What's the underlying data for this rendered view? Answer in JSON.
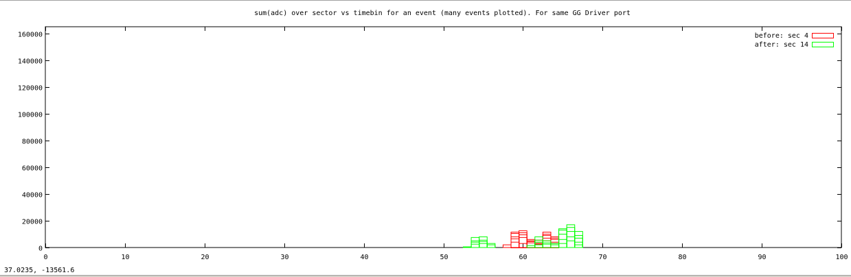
{
  "status": {
    "coords": "37.0235, -13561.6"
  },
  "chart_data": {
    "type": "bar",
    "title": "sum(adc) over sector vs timebin for an event (many events plotted).  For same GG Driver port",
    "xlabel": "",
    "ylabel": "",
    "xlim": [
      0,
      100
    ],
    "ylim": [
      0,
      165000
    ],
    "x_ticks": [
      0,
      10,
      20,
      30,
      40,
      50,
      60,
      70,
      80,
      90,
      100
    ],
    "y_ticks": [
      0,
      20000,
      40000,
      60000,
      80000,
      100000,
      120000,
      140000,
      160000
    ],
    "bin_width": 1,
    "grid": false,
    "legend_position": "top-right",
    "series": [
      {
        "name": "before: sec 4",
        "color": "#ff0000",
        "events": [
          [
            {
              "x": 59,
              "y": 0
            },
            {
              "x": 60,
              "y": 0
            },
            {
              "x": 61,
              "y": 0
            },
            {
              "x": 62,
              "y": 0
            },
            {
              "x": 63,
              "y": 0
            },
            {
              "x": 64,
              "y": 0
            }
          ],
          [
            {
              "x": 58,
              "y": 2000
            },
            {
              "x": 59,
              "y": 4000
            },
            {
              "x": 60,
              "y": 3000
            },
            {
              "x": 61,
              "y": 5000
            },
            {
              "x": 62,
              "y": 5500
            },
            {
              "x": 63,
              "y": 7000
            },
            {
              "x": 64,
              "y": 6000
            }
          ],
          [
            {
              "x": 59,
              "y": 8000
            },
            {
              "x": 60,
              "y": 9500
            },
            {
              "x": 61,
              "y": 6000
            },
            {
              "x": 62,
              "y": 4000
            },
            {
              "x": 63,
              "y": 10000
            },
            {
              "x": 64,
              "y": 8000
            }
          ],
          [
            {
              "x": 59,
              "y": 11500
            },
            {
              "x": 60,
              "y": 12500
            },
            {
              "x": 61,
              "y": 3500
            },
            {
              "x": 63,
              "y": 11500
            },
            {
              "x": 64,
              "y": 3000
            }
          ],
          [
            {
              "x": 59,
              "y": 10500
            },
            {
              "x": 60,
              "y": 11000
            },
            {
              "x": 61,
              "y": 4500
            },
            {
              "x": 62,
              "y": 2500
            },
            {
              "x": 63,
              "y": 9000
            },
            {
              "x": 64,
              "y": 7000
            }
          ],
          [
            {
              "x": 59,
              "y": 6500
            },
            {
              "x": 60,
              "y": 7500
            },
            {
              "x": 62,
              "y": 3000
            },
            {
              "x": 63,
              "y": 5000
            },
            {
              "x": 64,
              "y": 4000
            }
          ]
        ]
      },
      {
        "name": "after: sec 14",
        "color": "#00ff00",
        "events": [
          [
            {
              "x": 53,
              "y": 500
            },
            {
              "x": 54,
              "y": 2500
            },
            {
              "x": 55,
              "y": 3000
            },
            {
              "x": 56,
              "y": 2000
            }
          ],
          [
            {
              "x": 54,
              "y": 5000
            },
            {
              "x": 55,
              "y": 5500
            },
            {
              "x": 56,
              "y": 3000
            },
            {
              "x": 62,
              "y": 2000
            },
            {
              "x": 63,
              "y": 2500
            },
            {
              "x": 64,
              "y": 3000
            }
          ],
          [
            {
              "x": 54,
              "y": 7500
            },
            {
              "x": 55,
              "y": 8000
            },
            {
              "x": 62,
              "y": 5500
            },
            {
              "x": 63,
              "y": 3500
            },
            {
              "x": 65,
              "y": 10000
            },
            {
              "x": 66,
              "y": 12000
            },
            {
              "x": 67,
              "y": 9000
            }
          ],
          [
            {
              "x": 54,
              "y": 4000
            },
            {
              "x": 55,
              "y": 4500
            },
            {
              "x": 62,
              "y": 8000
            },
            {
              "x": 63,
              "y": 5000
            },
            {
              "x": 65,
              "y": 14000
            },
            {
              "x": 66,
              "y": 17000
            },
            {
              "x": 67,
              "y": 12000
            }
          ],
          [
            {
              "x": 62,
              "y": 4000
            },
            {
              "x": 64,
              "y": 2000
            },
            {
              "x": 65,
              "y": 6000
            },
            {
              "x": 66,
              "y": 8000
            },
            {
              "x": 67,
              "y": 4000
            }
          ],
          [
            {
              "x": 65,
              "y": 13000
            },
            {
              "x": 66,
              "y": 15000
            },
            {
              "x": 67,
              "y": 7000
            }
          ],
          [
            {
              "x": 61,
              "y": 1500
            },
            {
              "x": 65,
              "y": 3000
            },
            {
              "x": 66,
              "y": 5000
            },
            {
              "x": 67,
              "y": 2000
            }
          ]
        ]
      }
    ]
  }
}
